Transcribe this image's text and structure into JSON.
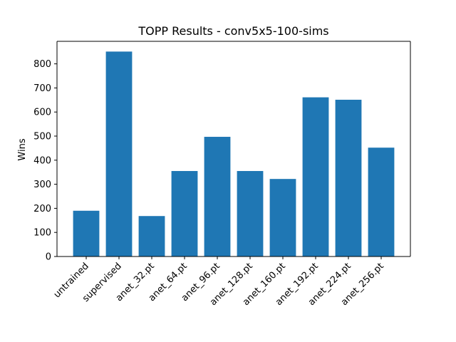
{
  "chart_data": {
    "type": "bar",
    "title": "TOPP Results - conv5x5-100-sims",
    "xlabel": "",
    "ylabel": "Wins",
    "categories": [
      "untrained",
      "supervised",
      "anet_32.pt",
      "anet_64.pt",
      "anet_96.pt",
      "anet_128.pt",
      "anet_160.pt",
      "anet_192.pt",
      "anet_224.pt",
      "anet_256.pt"
    ],
    "values": [
      190,
      851,
      168,
      355,
      497,
      355,
      322,
      661,
      651,
      452
    ],
    "ylim": [
      0,
      893.55
    ],
    "yticks": [
      0,
      100,
      200,
      300,
      400,
      500,
      600,
      700,
      800
    ],
    "grid": false,
    "bar_color": "#1f77b4"
  }
}
